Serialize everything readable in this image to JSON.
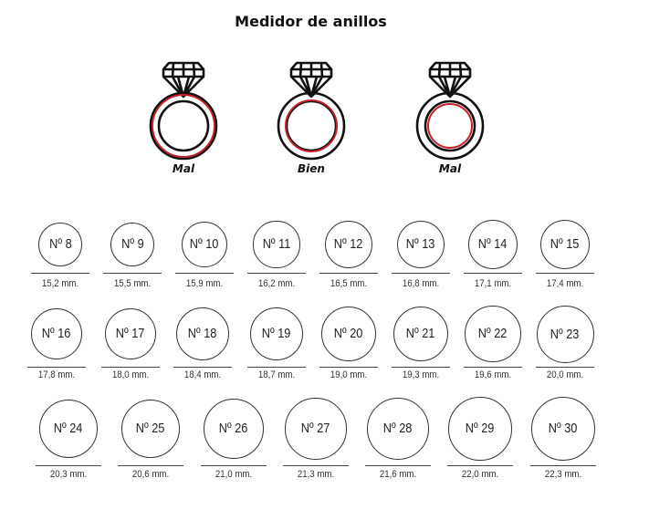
{
  "title": "Medidor de anillos",
  "examples": [
    {
      "label": "Mal",
      "fit": "too-large"
    },
    {
      "label": "Bien",
      "fit": "correct"
    },
    {
      "label": "Mal",
      "fit": "too-small"
    }
  ],
  "colors": {
    "ring": "#111111",
    "finger": "#c8202a"
  },
  "rows": [
    [
      {
        "number": "Nº 8",
        "mm": "15,2 mm."
      },
      {
        "number": "Nº 9",
        "mm": "15,5 mm."
      },
      {
        "number": "Nº 10",
        "mm": "15,9 mm."
      },
      {
        "number": "Nº 11",
        "mm": "16,2 mm."
      },
      {
        "number": "Nº 12",
        "mm": "16,5 mm."
      },
      {
        "number": "Nº 13",
        "mm": "16,8 mm."
      },
      {
        "number": "Nº 14",
        "mm": "17,1 mm."
      },
      {
        "number": "Nº 15",
        "mm": "17,4 mm."
      }
    ],
    [
      {
        "number": "Nº 16",
        "mm": "17,8 mm."
      },
      {
        "number": "Nº 17",
        "mm": "18,0 mm."
      },
      {
        "number": "Nº 18",
        "mm": "18,4 mm."
      },
      {
        "number": "Nº 19",
        "mm": "18,7 mm."
      },
      {
        "number": "Nº 20",
        "mm": "19,0 mm."
      },
      {
        "number": "Nº 21",
        "mm": "19,3 mm."
      },
      {
        "number": "Nº 22",
        "mm": "19,6 mm."
      },
      {
        "number": "Nº 23",
        "mm": "20,0 mm."
      }
    ],
    [
      {
        "number": "Nº 24",
        "mm": "20,3 mm."
      },
      {
        "number": "Nº 25",
        "mm": "20,6 mm."
      },
      {
        "number": "Nº 26",
        "mm": "21,0 mm."
      },
      {
        "number": "Nº 27",
        "mm": "21,3 mm."
      },
      {
        "number": "Nº 28",
        "mm": "21,6 mm."
      },
      {
        "number": "Nº 29",
        "mm": "22,0 mm."
      },
      {
        "number": "Nº 30",
        "mm": "22,3 mm."
      }
    ]
  ]
}
